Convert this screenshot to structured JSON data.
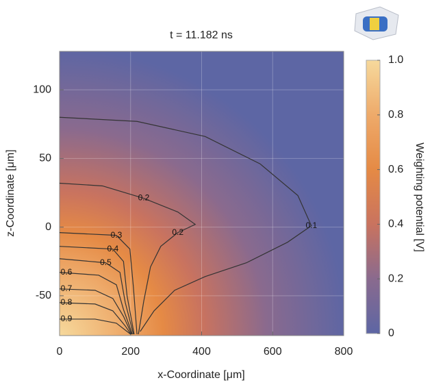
{
  "chart_data": {
    "type": "contour",
    "title": "t = 11.182 ns",
    "x_label": "x-Coordinate [μm]",
    "y_label": "z-Coordinate [μm]",
    "xlim": [
      0,
      800
    ],
    "ylim": [
      -79,
      128
    ],
    "xticks": [
      0,
      200,
      400,
      600,
      800
    ],
    "yticks": [
      -50,
      0,
      50,
      100
    ],
    "grid": true,
    "line_color": "#333333",
    "colorbar": {
      "label": "Weighting potential [V]",
      "lim": [
        0,
        1
      ],
      "ticks": [
        0,
        0.2,
        0.4,
        0.6,
        0.8,
        {
          "value": 1,
          "label": "1.0"
        }
      ],
      "colors": [
        "#5d66a4",
        "#8a6a8e",
        "#c9735f",
        "#e58a45",
        "#eeaa6a",
        "#f6d99c"
      ]
    },
    "series": [
      {
        "level": 0.1,
        "x": [
          0,
          218,
          410,
          565,
          671,
          709,
          642,
          526,
          410,
          324,
          266,
          227
        ],
        "values": [
          80,
          77,
          66,
          46,
          23,
          1,
          -11,
          -26,
          -36,
          -46,
          -61,
          -76
        ]
      },
      {
        "level": 0.2,
        "x": [
          0,
          121,
          237,
          333,
          382,
          333,
          285,
          256,
          237,
          222
        ],
        "values": [
          32,
          30,
          21,
          11,
          2,
          -4,
          -14,
          -29,
          -54,
          -78
        ]
      },
      {
        "level": 0.3,
        "x": [
          0,
          160,
          198,
          208,
          218
        ],
        "values": [
          -4,
          -6,
          -16,
          -44,
          -78
        ]
      },
      {
        "level": 0.4,
        "x": [
          0,
          150,
          180,
          190,
          210
        ],
        "values": [
          -14,
          -16,
          -25,
          -50,
          -78
        ]
      },
      {
        "level": 0.5,
        "x": [
          0,
          130,
          170,
          185,
          208
        ],
        "values": [
          -23,
          -26,
          -33,
          -55,
          -78
        ]
      },
      {
        "level": 0.6,
        "x": [
          0,
          110,
          160,
          180,
          205
        ],
        "values": [
          -33,
          -35,
          -42,
          -60,
          -78
        ]
      },
      {
        "level": 0.7,
        "x": [
          0,
          100,
          150,
          180,
          203
        ],
        "values": [
          -45,
          -46,
          -52,
          -65,
          -78
        ]
      },
      {
        "level": 0.8,
        "x": [
          0,
          100,
          150,
          185,
          201
        ],
        "values": [
          -55,
          -56,
          -61,
          -72,
          -78
        ]
      },
      {
        "level": 0.9,
        "x": [
          0,
          100,
          160,
          200
        ],
        "values": [
          -67,
          -67,
          -70,
          -78
        ]
      }
    ]
  }
}
